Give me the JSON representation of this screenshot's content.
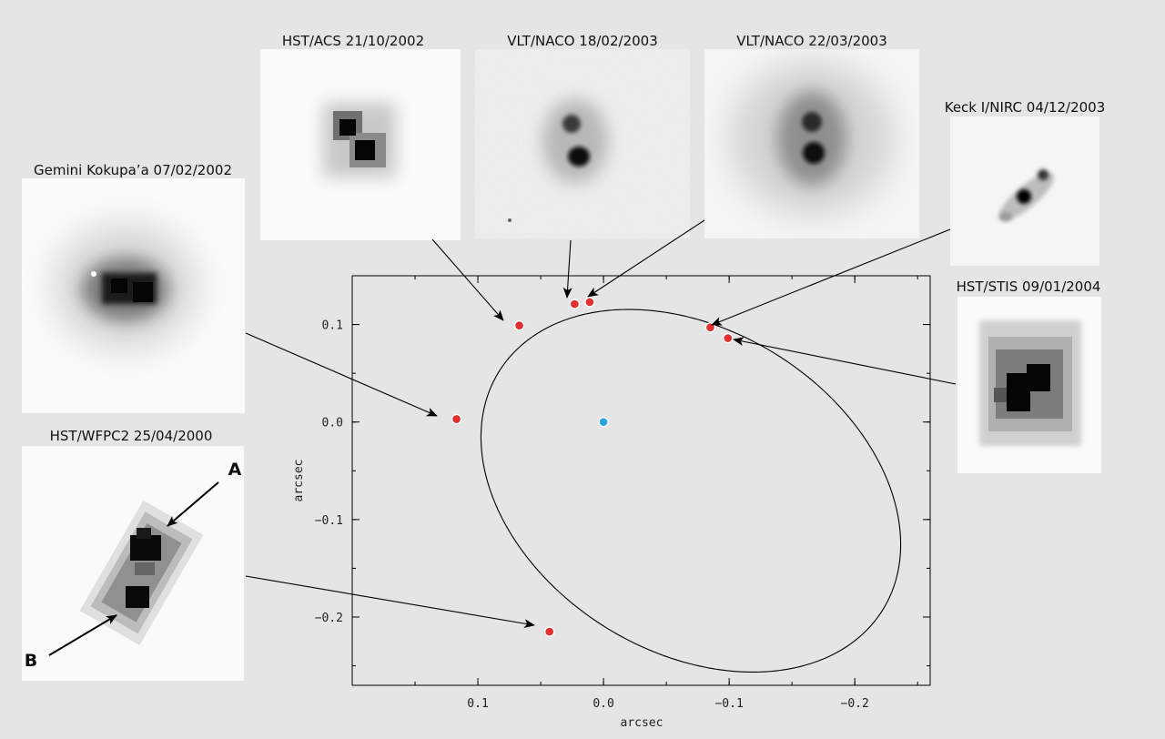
{
  "chart_data": {
    "type": "scatter",
    "title": "",
    "xlabel": "arcsec",
    "ylabel": "arcsec",
    "xlim": [
      0.2,
      -0.26
    ],
    "ylim": [
      -0.27,
      0.15
    ],
    "x_ticks": [
      {
        "value": 0.1,
        "label": "0.1"
      },
      {
        "value": 0.0,
        "label": "0.0"
      },
      {
        "value": -0.1,
        "label": "−0.1"
      },
      {
        "value": -0.2,
        "label": "−0.2"
      }
    ],
    "y_ticks": [
      {
        "value": 0.1,
        "label": "0.1"
      },
      {
        "value": 0.0,
        "label": "0.0"
      },
      {
        "value": -0.1,
        "label": "−0.1"
      },
      {
        "value": -0.2,
        "label": "−0.2"
      }
    ],
    "grid": false,
    "primary": {
      "x": 0.0,
      "y": 0.0,
      "color": "#29a3dc"
    },
    "orbit": {
      "center": [
        -0.0695,
        -0.0705
      ],
      "semi_axes": [
        0.2025,
        0.1465
      ],
      "rotation_deg": 55
    },
    "points_color": "#e03030",
    "points": [
      {
        "label": "HST/WFPC2 25/04/2000",
        "x": 0.043,
        "y": -0.215
      },
      {
        "label": "Gemini Kokupa’a 07/02/2002",
        "x": 0.117,
        "y": 0.003
      },
      {
        "label": "HST/ACS 21/10/2002",
        "x": 0.067,
        "y": 0.099
      },
      {
        "label": "VLT/NACO 18/02/2003",
        "x": 0.023,
        "y": 0.121
      },
      {
        "label": "VLT/NACO 22/03/2003",
        "x": 0.011,
        "y": 0.123
      },
      {
        "label": "Keck I/NIRC 04/12/2003",
        "x": -0.085,
        "y": 0.097
      },
      {
        "label": "HST/STIS 09/01/2004",
        "x": -0.099,
        "y": 0.086
      }
    ],
    "annotations": [
      "A",
      "B"
    ]
  }
}
